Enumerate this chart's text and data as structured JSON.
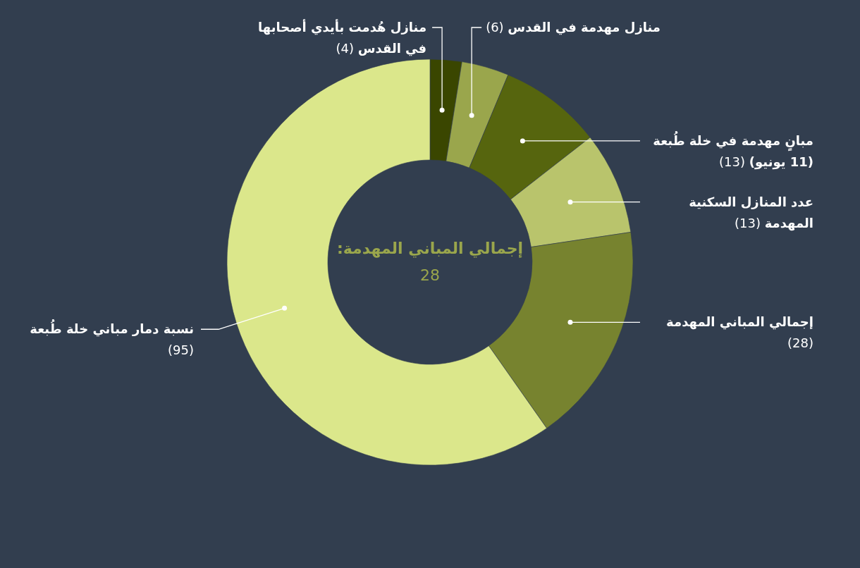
{
  "chart_data": {
    "type": "donut",
    "categories": [
      "منازل هُدمت بأيدي أصحابها في القدس",
      "منازل مهدمة في القدس",
      "مبانٍ مهدمة في خلة طُبعة **(11 يونيو)**",
      "عدد المنازل السكنية المهدمة",
      "إجمالي المباني المهدمة",
      "نسبة دمار مباني خلة طُبعة"
    ],
    "values": [
      4,
      6,
      13,
      13,
      28,
      95
    ],
    "colors": [
      "#3a4600",
      "#9aa64c",
      "#56650e",
      "#b9c46c",
      "#77832f",
      "#dbe78b"
    ],
    "value_labels": [
      "(4)",
      "(6)",
      "(13)",
      "(13)",
      "(28)",
      "(95)"
    ],
    "annotations": [
      "إجمالي المباني المهدمة:",
      "28"
    ]
  }
}
